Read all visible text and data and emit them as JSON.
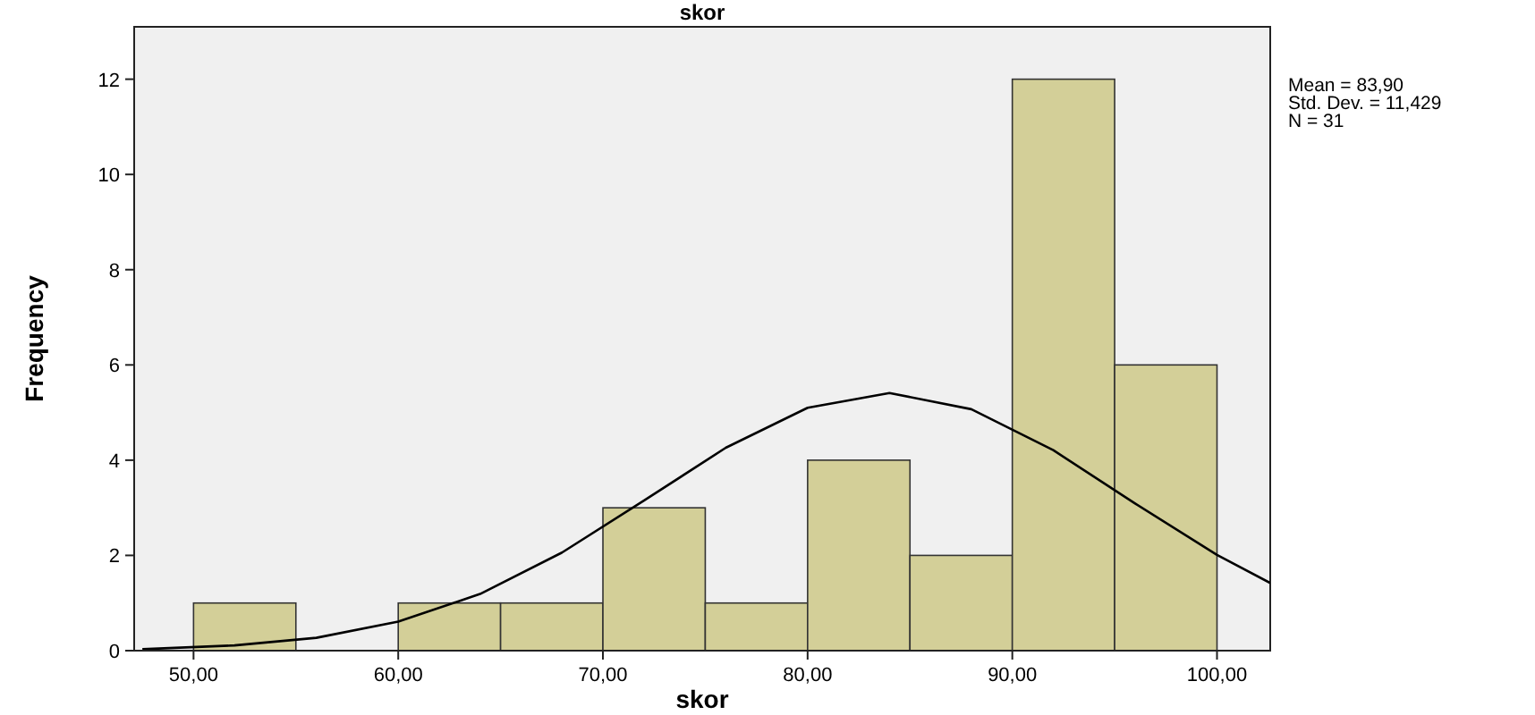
{
  "chart_data": {
    "type": "histogram",
    "title": "skor",
    "xlabel": "skor",
    "ylabel": "Frequency",
    "bins": [
      50,
      55,
      60,
      65,
      70,
      75,
      80,
      85,
      90,
      95,
      100
    ],
    "values": [
      1,
      0,
      1,
      1,
      3,
      1,
      4,
      2,
      12,
      6
    ],
    "color": "#d3cf98",
    "series": [
      {
        "type": "line",
        "color": "#000000",
        "x": [
          47.5,
          52,
          56,
          60,
          64,
          68,
          72,
          76,
          80,
          84,
          88,
          92,
          96,
          100,
          102.6
        ],
        "values": [
          0.03,
          0.11,
          0.27,
          0.61,
          1.19,
          2.06,
          3.15,
          4.26,
          5.1,
          5.41,
          5.07,
          4.21,
          3.09,
          2.01,
          1.42
        ]
      }
    ],
    "xlim": [
      47.1,
      102.6
    ],
    "xticks": [
      {
        "value": 50,
        "label": "50,00"
      },
      {
        "value": 60,
        "label": "60,00"
      },
      {
        "value": 70,
        "label": "70,00"
      },
      {
        "value": 80,
        "label": "80,00"
      },
      {
        "value": 90,
        "label": "90,00"
      },
      {
        "value": 100,
        "label": "100,00"
      }
    ],
    "ylim": [
      0,
      13.1
    ],
    "yticks": [
      0,
      2,
      4,
      6,
      8,
      10,
      12
    ],
    "annotations": [
      "Mean = 83,90",
      "Std. Dev. = 11,429",
      "N = 31"
    ]
  }
}
